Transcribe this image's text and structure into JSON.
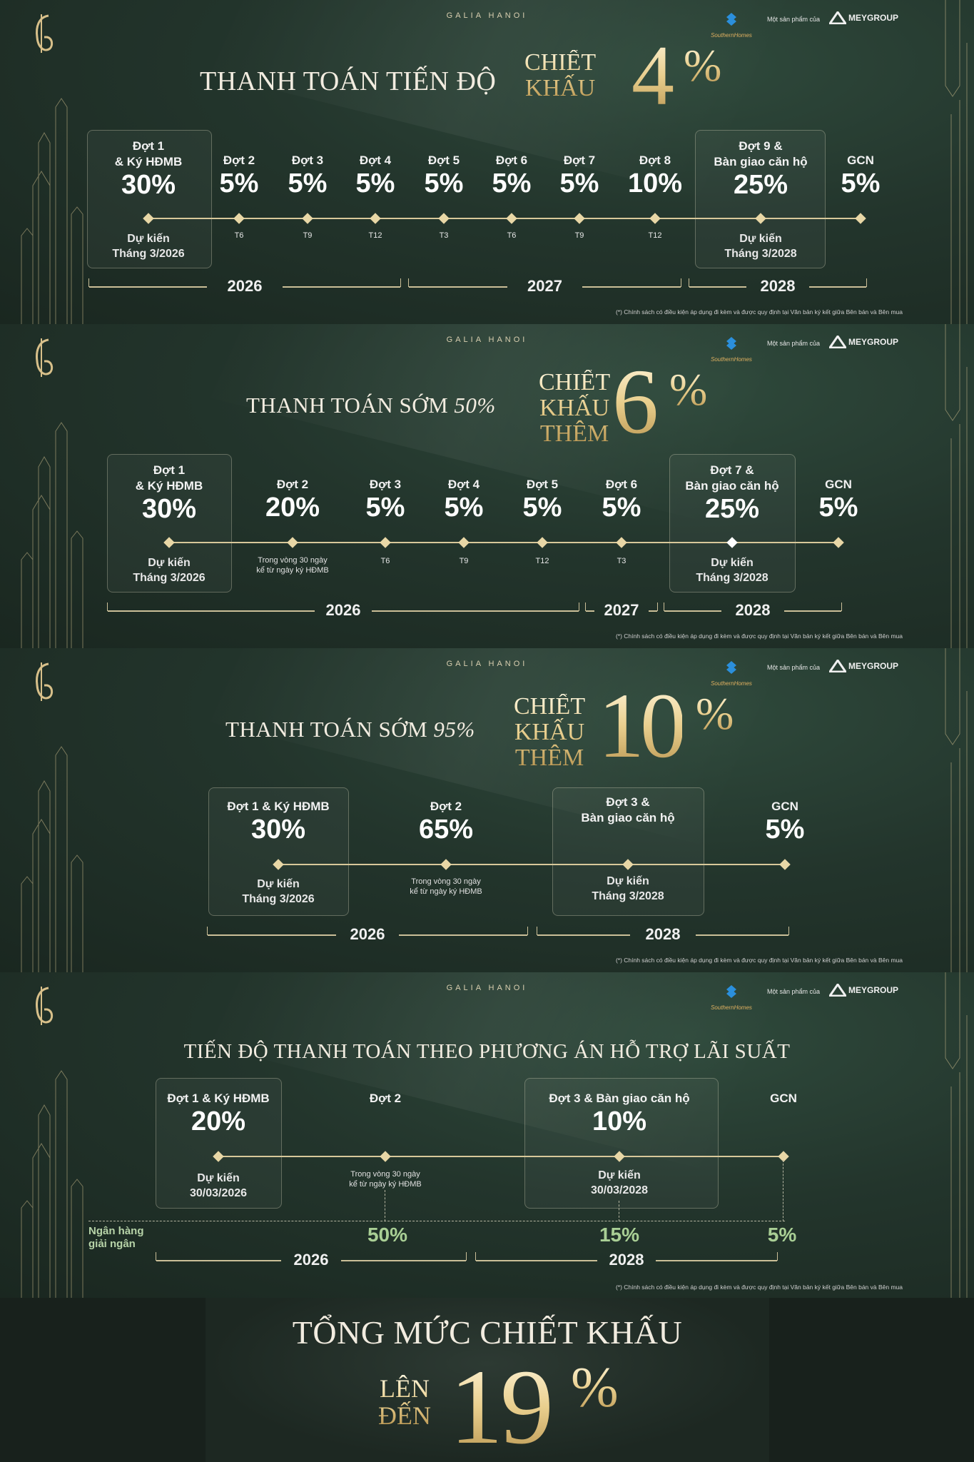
{
  "brand": "GALIA HANOI",
  "partner": {
    "southern": "SouthernHomes",
    "product_of": "Một sản phẩm của",
    "mey": "MEYGROUP"
  },
  "note": "(*) Chính sách có điều kiện áp dụng đi kèm và được quy định tại Văn bản ký kết giữa Bên bán và Bên mua",
  "panel1": {
    "headline": "THANH TOÁN TIẾN ĐỘ",
    "discount_label_1": "CHIẾT",
    "discount_label_2": "KHẤU",
    "discount_number": "4",
    "discount_percent": "%",
    "installments": [
      {
        "label_1": "Đợt 1",
        "label_2": "& Ký HĐMB",
        "value": "30%",
        "note_1": "Dự kiến",
        "note_2": "Tháng 3/2026"
      },
      {
        "label_1": "Đợt 2",
        "value": "5%",
        "tick": "T6"
      },
      {
        "label_1": "Đợt 3",
        "value": "5%",
        "tick": "T9"
      },
      {
        "label_1": "Đợt 4",
        "value": "5%",
        "tick": "T12"
      },
      {
        "label_1": "Đợt 5",
        "value": "5%",
        "tick": "T3"
      },
      {
        "label_1": "Đợt 6",
        "value": "5%",
        "tick": "T6"
      },
      {
        "label_1": "Đợt 7",
        "value": "5%",
        "tick": "T9"
      },
      {
        "label_1": "Đợt 8",
        "value": "10%",
        "tick": "T12"
      },
      {
        "label_1": "Đợt 9 &",
        "label_2": "Bàn giao căn hộ",
        "value": "25%",
        "note_1": "Dự kiến",
        "note_2": "Tháng 3/2028"
      },
      {
        "label_1": "GCN",
        "value": "5%"
      }
    ],
    "years": [
      "2026",
      "2027",
      "2028"
    ]
  },
  "panel2": {
    "headline": "THANH TOÁN SỚM",
    "headline_pct": "50%",
    "discount_label_1": "CHIẾT",
    "discount_label_2": "KHẤU",
    "discount_label_3": "THÊM",
    "discount_number": "6",
    "discount_percent": "%",
    "installments": [
      {
        "label_1": "Đợt 1",
        "label_2": "& Ký HĐMB",
        "value": "30%",
        "note_1": "Dự kiến",
        "note_2": "Tháng 3/2026"
      },
      {
        "label_1": "Đợt 2",
        "value": "20%",
        "small_1": "Trong vòng 30 ngày",
        "small_2": "kể từ ngày ký HĐMB"
      },
      {
        "label_1": "Đợt 3",
        "value": "5%",
        "tick": "T6"
      },
      {
        "label_1": "Đợt 4",
        "value": "5%",
        "tick": "T9"
      },
      {
        "label_1": "Đợt 5",
        "value": "5%",
        "tick": "T12"
      },
      {
        "label_1": "Đợt 6",
        "value": "5%",
        "tick": "T3"
      },
      {
        "label_1": "Đợt 7 &",
        "label_2": "Bàn giao căn hộ",
        "value": "25%",
        "note_1": "Dự kiến",
        "note_2": "Tháng 3/2028"
      },
      {
        "label_1": "GCN",
        "value": "5%"
      }
    ],
    "years": [
      "2026",
      "2027",
      "2028"
    ]
  },
  "panel3": {
    "headline": "THANH TOÁN SỚM",
    "headline_pct": "95%",
    "discount_label_1": "CHIẾT",
    "discount_label_2": "KHẤU",
    "discount_label_3": "THÊM",
    "discount_number": "10",
    "discount_percent": "%",
    "installments": [
      {
        "label_1": "Đợt 1 & Ký HĐMB",
        "value": "30%",
        "note_1": "Dự kiến",
        "note_2": "Tháng 3/2026"
      },
      {
        "label_1": "Đợt 2",
        "value": "65%",
        "small_1": "Trong vòng 30 ngày",
        "small_2": "kể từ ngày ký HĐMB"
      },
      {
        "label_1": "Đợt 3 &",
        "label_2": "Bàn giao căn hộ",
        "note_1": "Dự kiến",
        "note_2": "Tháng 3/2028"
      },
      {
        "label_1": "GCN",
        "value": "5%"
      }
    ],
    "years": [
      "2026",
      "2028"
    ]
  },
  "panel4": {
    "headline": "TIẾN ĐỘ THANH TOÁN THEO PHƯƠNG ÁN HỖ TRỢ LÃI SUẤT",
    "installments": [
      {
        "label_1": "Đợt 1 & Ký HĐMB",
        "value": "20%",
        "note_1": "Dự kiến",
        "note_2": "30/03/2026"
      },
      {
        "label_1": "Đợt 2",
        "small_1": "Trong vòng 30 ngày",
        "small_2": "kể từ ngày ký HĐMB"
      },
      {
        "label_1": "Đợt 3 & Bàn giao căn hộ",
        "value": "10%",
        "note_1": "Dự kiến",
        "note_2": "30/03/2028"
      },
      {
        "label_1": "GCN"
      }
    ],
    "bank_label_1": "Ngân hàng",
    "bank_label_2": "giải ngân",
    "bank_values": [
      "50%",
      "15%",
      "5%"
    ],
    "years": [
      "2026",
      "2028"
    ]
  },
  "total": {
    "headline": "TỔNG MỨC CHIẾT KHẤU",
    "up_to_1": "LÊN",
    "up_to_2": "ĐẾN",
    "number": "19",
    "percent": "%"
  },
  "colors": {
    "gold": "#e6cf95",
    "bank_green": "#a9cf95",
    "bg": "#23352c"
  }
}
